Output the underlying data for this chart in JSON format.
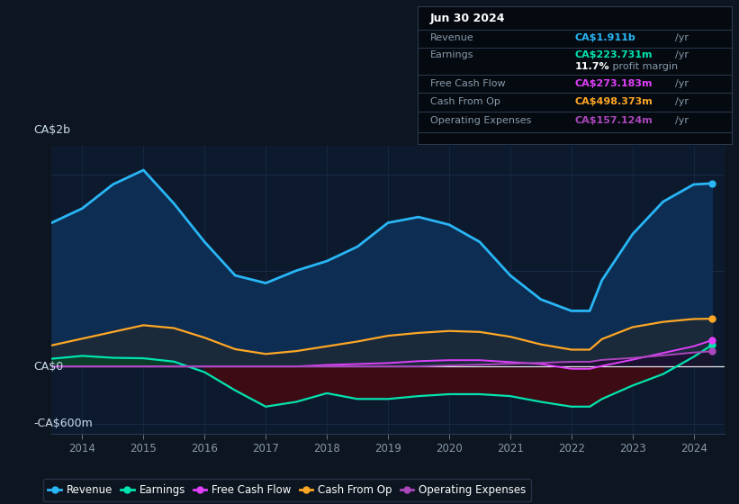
{
  "bg_color": "#0d1520",
  "plot_bg_color": "#0d1a2e",
  "grid_color": "#1e3050",
  "ylim": [
    -700,
    2300
  ],
  "ylabel_top": "CA$2b",
  "ylabel_zero": "CA$0",
  "ylabel_bottom": "-CA$600m",
  "years": [
    2013.5,
    2014.0,
    2014.5,
    2015.0,
    2015.5,
    2016.0,
    2016.5,
    2017.0,
    2017.5,
    2018.0,
    2018.5,
    2019.0,
    2019.5,
    2020.0,
    2020.5,
    2021.0,
    2021.5,
    2022.0,
    2022.3,
    2022.5,
    2023.0,
    2023.5,
    2024.0,
    2024.3
  ],
  "revenue": [
    1500,
    1650,
    1900,
    2050,
    1700,
    1300,
    950,
    870,
    1000,
    1100,
    1250,
    1500,
    1560,
    1480,
    1300,
    950,
    700,
    580,
    580,
    900,
    1380,
    1720,
    1900,
    1911
  ],
  "earnings": [
    80,
    110,
    90,
    85,
    50,
    -60,
    -250,
    -420,
    -370,
    -280,
    -340,
    -340,
    -310,
    -290,
    -290,
    -310,
    -370,
    -420,
    -420,
    -340,
    -200,
    -80,
    100,
    224
  ],
  "free_cash_flow": [
    0,
    0,
    0,
    0,
    0,
    0,
    0,
    0,
    0,
    15,
    25,
    35,
    55,
    65,
    65,
    45,
    25,
    -25,
    -25,
    5,
    70,
    140,
    210,
    273
  ],
  "cash_from_op": [
    220,
    290,
    360,
    430,
    400,
    300,
    180,
    130,
    160,
    210,
    260,
    320,
    350,
    370,
    360,
    310,
    230,
    175,
    175,
    285,
    410,
    465,
    495,
    498
  ],
  "operating_expenses": [
    0,
    0,
    0,
    0,
    0,
    0,
    0,
    0,
    0,
    0,
    0,
    0,
    0,
    10,
    18,
    28,
    38,
    48,
    48,
    68,
    88,
    115,
    145,
    157
  ],
  "revenue_color": "#29b6f6",
  "earnings_color": "#00e5b0",
  "fcf_color": "#e040fb",
  "cashop_color": "#ffa726",
  "opex_color": "#ab47bc",
  "revenue_fill": "#0d2d52",
  "cashop_fill": "#1a2a3a",
  "earnings_fill_neg": "#3d0b14",
  "earnings_fill_pos": "#0d3d2a",
  "opex_fill": "#1a0d2e",
  "info_box": {
    "date": "Jun 30 2024",
    "revenue_label": "Revenue",
    "revenue_value": "CA$1.911b",
    "earnings_label": "Earnings",
    "earnings_value": "CA$223.731m",
    "margin_pct": "11.7%",
    "margin_text": " profit margin",
    "fcf_label": "Free Cash Flow",
    "fcf_value": "CA$273.183m",
    "cashop_label": "Cash From Op",
    "cashop_value": "CA$498.373m",
    "opex_label": "Operating Expenses",
    "opex_value": "CA$157.124m"
  },
  "legend_items": [
    "Revenue",
    "Earnings",
    "Free Cash Flow",
    "Cash From Op",
    "Operating Expenses"
  ]
}
